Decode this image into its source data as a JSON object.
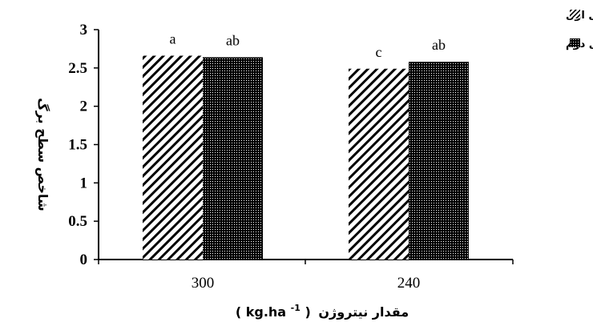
{
  "chart_data": {
    "type": "bar",
    "categories": [
      "300",
      "240"
    ],
    "series": [
      {
        "name": "سال اول",
        "values": [
          2.66,
          2.49
        ],
        "letters": [
          "a",
          "c"
        ],
        "pattern": "diagonal-hatch"
      },
      {
        "name": "سال دوم",
        "values": [
          2.64,
          2.58
        ],
        "letters": [
          "ab",
          "ab"
        ],
        "pattern": "dense-dots"
      }
    ],
    "ylabel": "شاخص سطح برگ",
    "xlabel_parts": {
      "title": "مقدار نیتروژن",
      "unit_open": "(",
      "unit_base": "kg.ha",
      "unit_exp": "-1",
      "unit_close": ")"
    },
    "yticks": [
      "0",
      "0.5",
      "1",
      "1.5",
      "2",
      "2.5",
      "3"
    ],
    "ylim": [
      0,
      3
    ],
    "grid": false,
    "legend_position": "top-right"
  },
  "colors": {
    "ink": "#000000",
    "background": "#ffffff"
  }
}
